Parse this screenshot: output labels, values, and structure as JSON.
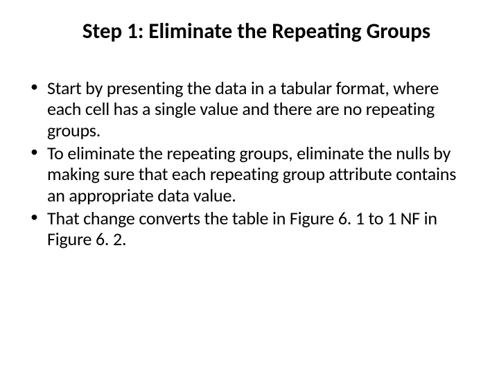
{
  "slide": {
    "title": "Step 1: Eliminate the Repeating Groups",
    "bullets": [
      "Start by presenting the data in a tabular format, where each cell has a single value and there are no repeating groups.",
      "To eliminate the repeating groups, eliminate the nulls by making sure that each repeating group attribute contains an appropriate data value.",
      "That change converts the table in Figure 6. 1 to 1 NF in Figure 6. 2."
    ],
    "colors": {
      "background": "#ffffff",
      "text": "#000000"
    },
    "typography": {
      "title_fontsize": 31,
      "title_weight": 700,
      "body_fontsize": 26,
      "body_weight": 400,
      "font_family": "Calibri"
    }
  }
}
